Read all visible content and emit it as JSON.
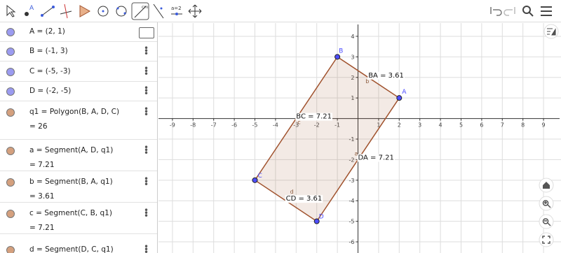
{
  "toolbar": {
    "tool_texts": [
      "A",
      "cm",
      "a=2"
    ]
  },
  "algebra": {
    "items": [
      {
        "definition": "A = (2, 1)",
        "color": "#9b9bf0"
      },
      {
        "definition": "B = (-1, 3)",
        "color": "#9b9bf0"
      },
      {
        "definition": "C = (-5, -3)",
        "color": "#9b9bf0"
      },
      {
        "definition": "D = (-2, -5)",
        "color": "#9b9bf0"
      },
      {
        "definition": "q1 = Polygon(B, A, D, C)",
        "value": "= 26",
        "color": "#d4a07e"
      },
      {
        "definition": "a = Segment(A, D, q1)",
        "value": "= 7.21",
        "color": "#d4a07e"
      },
      {
        "definition": "b = Segment(B, A, q1)",
        "value": "= 3.61",
        "color": "#d4a07e"
      },
      {
        "definition": "c = Segment(C, B, q1)",
        "value": "= 7.21",
        "color": "#d4a07e"
      },
      {
        "definition": "d = Segment(D, C, q1)",
        "color": "#d4a07e"
      }
    ]
  },
  "graphics": {
    "xlim": [
      -9.677,
      9.847
    ],
    "ylim": [
      -6.542,
      4.644
    ],
    "xticks": [
      -9,
      -8,
      -7,
      -6,
      -5,
      -4,
      -3,
      -2,
      -1,
      1,
      2,
      3,
      4,
      5,
      6,
      7,
      8,
      9
    ],
    "yticks": [
      -6,
      -5,
      -4,
      -3,
      -2,
      -1,
      1,
      2,
      3,
      4
    ],
    "grid": true,
    "points": [
      {
        "name": "B",
        "x": -1,
        "y": 3
      },
      {
        "name": "A",
        "x": 2,
        "y": 1
      },
      {
        "name": "D",
        "x": -2,
        "y": -5
      },
      {
        "name": "C",
        "x": -5,
        "y": -3
      }
    ],
    "polygon_color": "#a0522d",
    "point_color": "#4d4dff",
    "segments": [
      {
        "name": "b",
        "label": "BA = 3.61"
      },
      {
        "name": "a",
        "label": "DA = 7.21"
      },
      {
        "name": "d",
        "label": "CD = 3.61"
      },
      {
        "name": "c",
        "label": "BC = 7.21"
      }
    ]
  }
}
